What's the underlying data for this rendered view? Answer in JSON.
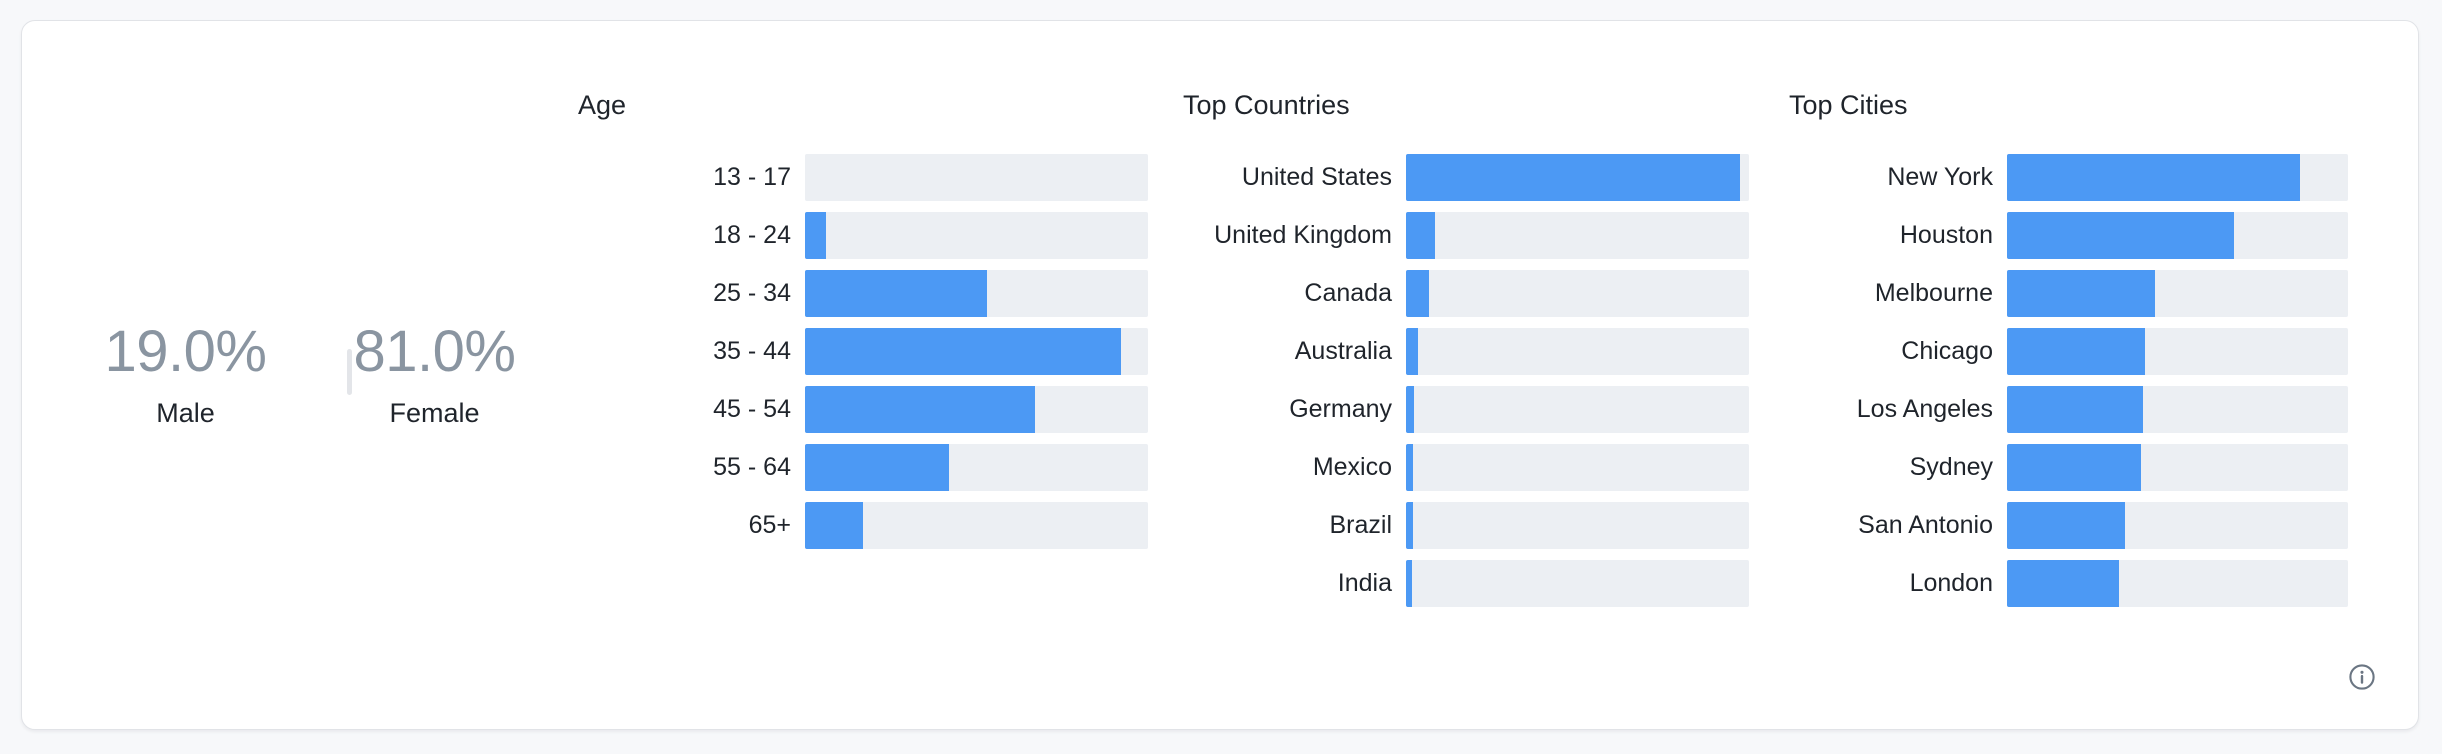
{
  "colors": {
    "page_bg": "#F7F8FA",
    "card_bg": "#FFFFFF",
    "card_border": "#E1E3E7",
    "bar_blue": "#4C99F4",
    "bar_track": "#ECEFF3",
    "percent_gray": "#8A95A1",
    "label_dark": "#1F242B",
    "divider": "#E3E5E9",
    "icon_slate": "#6B7683"
  },
  "gender": {
    "male": {
      "value": "19.0%",
      "label": "Male"
    },
    "female": {
      "value": "81.0%",
      "label": "Female"
    }
  },
  "icons": {
    "info": "info-icon"
  },
  "chart_data": [
    {
      "type": "bar",
      "orientation": "horizontal",
      "title": "Age",
      "categories": [
        "13 - 17",
        "18 - 24",
        "25 - 34",
        "35 - 44",
        "45 - 54",
        "55 - 64",
        "65+"
      ],
      "values": [
        0,
        6,
        53,
        92,
        67,
        42,
        17
      ],
      "value_unit": "percent_fill_of_track",
      "xlim": [
        0,
        100
      ],
      "grid": false,
      "legend": "none"
    },
    {
      "type": "bar",
      "orientation": "horizontal",
      "title": "Top Countries",
      "categories": [
        "United States",
        "United Kingdom",
        "Canada",
        "Australia",
        "Germany",
        "Mexico",
        "Brazil",
        "India"
      ],
      "values": [
        97.5,
        8.5,
        6.6,
        3.4,
        2.4,
        2.1,
        1.9,
        1.7
      ],
      "value_unit": "percent_fill_of_track",
      "xlim": [
        0,
        100
      ],
      "grid": false,
      "legend": "none"
    },
    {
      "type": "bar",
      "orientation": "horizontal",
      "title": "Top Cities",
      "categories": [
        "New York",
        "Houston",
        "Melbourne",
        "Chicago",
        "Los Angeles",
        "Sydney",
        "San Antonio",
        "London"
      ],
      "values": [
        86,
        66.5,
        43.3,
        40.5,
        39.8,
        39.3,
        34.5,
        32.8
      ],
      "value_unit": "percent_fill_of_track",
      "xlim": [
        0,
        100
      ],
      "grid": false,
      "legend": "none"
    }
  ]
}
